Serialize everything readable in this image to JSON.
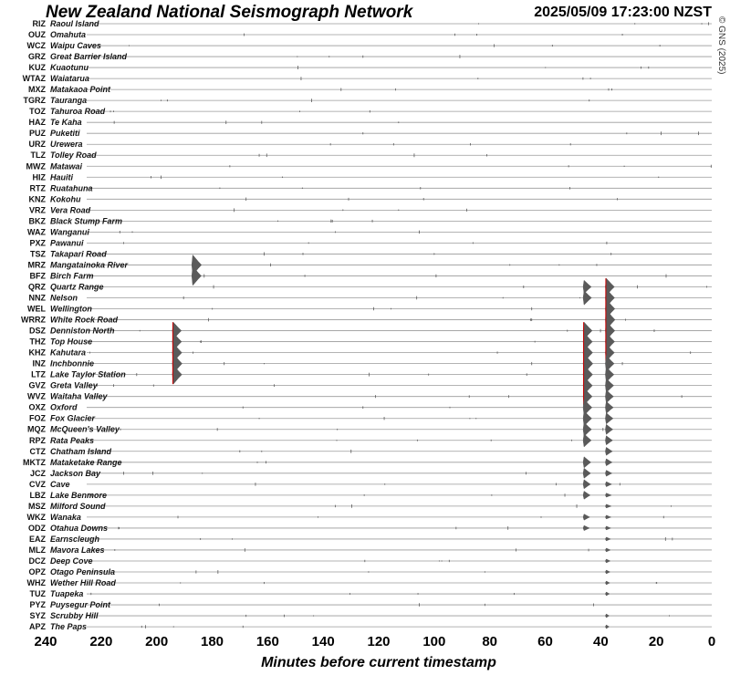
{
  "title": "New Zealand National Seismograph Network",
  "timestamp": "2025/05/09 17:23:00 NZST",
  "copyright": "© GNS (2025)",
  "chart_data": {
    "type": "line",
    "title": "New Zealand National Seismograph Network",
    "xlabel": "Minutes before current timestamp",
    "ylabel": "",
    "xlim": [
      240,
      0
    ],
    "x_ticks": [
      "240",
      "220",
      "200",
      "180",
      "160",
      "140",
      "120",
      "100",
      "80",
      "60",
      "40",
      "20",
      "0"
    ],
    "grid": false,
    "colors": {
      "trace": "#5a5a5a",
      "highlight": "#cc0000",
      "baseline": "#9a9a9a"
    },
    "stations": [
      {
        "code": "RIZ",
        "name": "Raoul Island"
      },
      {
        "code": "OUZ",
        "name": "Omahuta"
      },
      {
        "code": "WCZ",
        "name": "Waipu Caves"
      },
      {
        "code": "GRZ",
        "name": "Great Barrier Island"
      },
      {
        "code": "KUZ",
        "name": "Kuaotunu"
      },
      {
        "code": "WTAZ",
        "name": "Waiatarua"
      },
      {
        "code": "MXZ",
        "name": "Matakaoa Point"
      },
      {
        "code": "TGRZ",
        "name": "Tauranga"
      },
      {
        "code": "TOZ",
        "name": "Tahuroa Road"
      },
      {
        "code": "HAZ",
        "name": "Te Kaha"
      },
      {
        "code": "PUZ",
        "name": "Puketiti"
      },
      {
        "code": "URZ",
        "name": "Urewera"
      },
      {
        "code": "TLZ",
        "name": "Tolley Road"
      },
      {
        "code": "MWZ",
        "name": "Matawai"
      },
      {
        "code": "HIZ",
        "name": "Hauiti"
      },
      {
        "code": "RTZ",
        "name": "Ruatahuna"
      },
      {
        "code": "KNZ",
        "name": "Kokohu"
      },
      {
        "code": "VRZ",
        "name": "Vera Road"
      },
      {
        "code": "BKZ",
        "name": "Black Stump Farm"
      },
      {
        "code": "WAZ",
        "name": "Wanganui"
      },
      {
        "code": "PXZ",
        "name": "Pawanui"
      },
      {
        "code": "TSZ",
        "name": "Takapari Road"
      },
      {
        "code": "MRZ",
        "name": "Mangatainoka River"
      },
      {
        "code": "BFZ",
        "name": "Birch Farm"
      },
      {
        "code": "QRZ",
        "name": "Quartz Range"
      },
      {
        "code": "NNZ",
        "name": "Nelson"
      },
      {
        "code": "WEL",
        "name": "Wellington"
      },
      {
        "code": "WRRZ",
        "name": "White Rock Road"
      },
      {
        "code": "DSZ",
        "name": "Denniston North"
      },
      {
        "code": "THZ",
        "name": "Top House"
      },
      {
        "code": "KHZ",
        "name": "Kahutara"
      },
      {
        "code": "INZ",
        "name": "Inchbonnie"
      },
      {
        "code": "LTZ",
        "name": "Lake Taylor Station"
      },
      {
        "code": "GVZ",
        "name": "Greta Valley"
      },
      {
        "code": "WVZ",
        "name": "Waitaha Valley"
      },
      {
        "code": "OXZ",
        "name": "Oxford"
      },
      {
        "code": "FOZ",
        "name": "Fox Glacier"
      },
      {
        "code": "MQZ",
        "name": "McQueen's Valley"
      },
      {
        "code": "RPZ",
        "name": "Rata Peaks"
      },
      {
        "code": "CTZ",
        "name": "Chatham Island"
      },
      {
        "code": "MKTZ",
        "name": "Mataketake Range"
      },
      {
        "code": "JCZ",
        "name": "Jackson Bay"
      },
      {
        "code": "CVZ",
        "name": "Cave"
      },
      {
        "code": "LBZ",
        "name": "Lake Benmore"
      },
      {
        "code": "MSZ",
        "name": "Milford Sound"
      },
      {
        "code": "WKZ",
        "name": "Wanaka"
      },
      {
        "code": "ODZ",
        "name": "Otahua Downs"
      },
      {
        "code": "EAZ",
        "name": "Earnscleugh"
      },
      {
        "code": "MLZ",
        "name": "Mavora Lakes"
      },
      {
        "code": "DCZ",
        "name": "Deep Cove"
      },
      {
        "code": "OPZ",
        "name": "Otago Peninsula"
      },
      {
        "code": "WHZ",
        "name": "Wether Hill Road"
      },
      {
        "code": "TUZ",
        "name": "Tuapeka"
      },
      {
        "code": "PYZ",
        "name": "Puysegur Point"
      },
      {
        "code": "SYZ",
        "name": "Scrubby Hill"
      },
      {
        "code": "APZ",
        "name": "The Paps"
      }
    ],
    "events": [
      {
        "minutes_before": 194,
        "stations": [
          "DSZ",
          "THZ",
          "KHZ",
          "INZ",
          "LTZ"
        ],
        "peak_station": "INZ",
        "highlight": true
      },
      {
        "minutes_before": 46,
        "stations": [
          "QRZ",
          "NNZ",
          "DSZ",
          "THZ",
          "KHZ",
          "INZ",
          "LTZ",
          "GVZ",
          "WVZ",
          "OXZ",
          "FOZ",
          "MQZ",
          "RPZ",
          "MKTZ",
          "JCZ",
          "CVZ",
          "LBZ",
          "WKZ",
          "ODZ"
        ],
        "peak_station": "INZ",
        "highlight": true
      },
      {
        "minutes_before": 38,
        "stations": [
          "QRZ",
          "NNZ",
          "WEL",
          "WRRZ",
          "DSZ",
          "THZ",
          "KHZ",
          "INZ",
          "LTZ",
          "GVZ",
          "WVZ",
          "OXZ",
          "FOZ",
          "MQZ",
          "RPZ",
          "CTZ",
          "MKTZ",
          "JCZ",
          "CVZ",
          "LBZ",
          "MSZ",
          "WKZ",
          "ODZ",
          "EAZ",
          "MLZ",
          "DCZ",
          "OPZ",
          "WHZ",
          "TUZ",
          "SYZ",
          "APZ"
        ],
        "peak_station": "WRRZ",
        "highlight": true
      },
      {
        "minutes_before": 187,
        "stations": [
          "MRZ",
          "BFZ"
        ],
        "peak_station": "MRZ",
        "highlight": false
      }
    ]
  }
}
